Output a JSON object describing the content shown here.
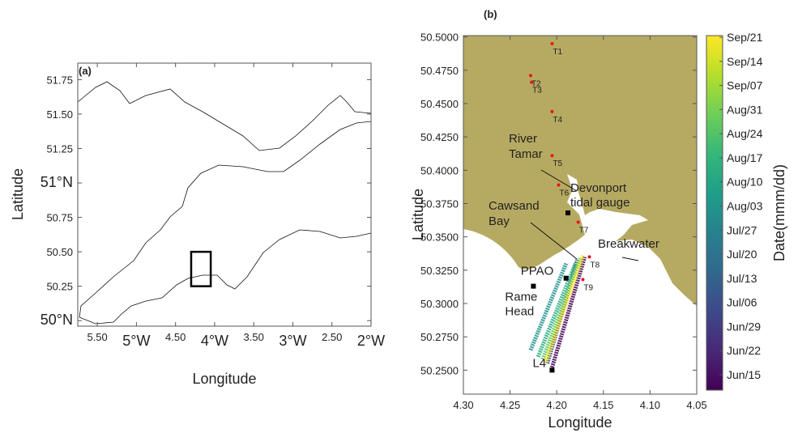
{
  "chart_data": [
    {
      "type": "map",
      "title": "(a)",
      "xlabel": "Longitude",
      "ylabel": "Latitude",
      "xlim": [
        -5.75,
        -2
      ],
      "ylim": [
        49.96,
        51.87
      ],
      "xticks": [
        {
          "value": -5.5,
          "label": "5.50"
        },
        {
          "value": -5,
          "label": "5°W"
        },
        {
          "value": -4.5,
          "label": "4.50"
        },
        {
          "value": -4,
          "label": "4°W"
        },
        {
          "value": -3.5,
          "label": "3.50"
        },
        {
          "value": -3,
          "label": "3°W"
        },
        {
          "value": -2.5,
          "label": "2.50"
        },
        {
          "value": -2,
          "label": "2°W"
        }
      ],
      "yticks": [
        {
          "value": 50,
          "label": "50°N"
        },
        {
          "value": 50.25,
          "label": "50.25"
        },
        {
          "value": 50.5,
          "label": "50.50"
        },
        {
          "value": 50.75,
          "label": "50.75"
        },
        {
          "value": 51,
          "label": "51°N"
        },
        {
          "value": 51.25,
          "label": "51.25"
        },
        {
          "value": 51.5,
          "label": "51.50"
        },
        {
          "value": 51.75,
          "label": "51.75"
        }
      ],
      "box": {
        "x": [
          -4.3,
          -4.05
        ],
        "y": [
          50.25,
          50.5
        ]
      }
    },
    {
      "type": "map",
      "title": "(b)",
      "xlabel": "Longitude",
      "ylabel": "Latitude",
      "xlim": [
        -4.3,
        -4.05
      ],
      "ylim": [
        50.232,
        50.501
      ],
      "xticks": [
        {
          "value": -4.3,
          "label": "4.30"
        },
        {
          "value": -4.25,
          "label": "4.25"
        },
        {
          "value": -4.2,
          "label": "4.20"
        },
        {
          "value": -4.15,
          "label": "4.15"
        },
        {
          "value": -4.1,
          "label": "4.10"
        },
        {
          "value": -4.05,
          "label": "4.05"
        }
      ],
      "yticks": [
        {
          "value": 50.25,
          "label": "50.2500"
        },
        {
          "value": 50.275,
          "label": "50.2750"
        },
        {
          "value": 50.3,
          "label": "50.3000"
        },
        {
          "value": 50.325,
          "label": "50.3250"
        },
        {
          "value": 50.35,
          "label": "50.3500"
        },
        {
          "value": 50.375,
          "label": "50.3750"
        },
        {
          "value": 50.4,
          "label": "50.4000"
        },
        {
          "value": 50.425,
          "label": "50.4250"
        },
        {
          "value": 50.45,
          "label": "50.4500"
        },
        {
          "value": 50.475,
          "label": "50.4750"
        },
        {
          "value": 50.5,
          "label": "50.5000"
        }
      ],
      "stations": {
        "color": "#e8141b",
        "labels": [
          "T1",
          "T2",
          "T3",
          "T4",
          "T5",
          "T6",
          "T7",
          "T8",
          "T9"
        ],
        "x": [
          -4.205,
          -4.228,
          -4.227,
          -4.205,
          -4.205,
          -4.198,
          -4.177,
          -4.165,
          -4.172
        ],
        "y": [
          50.495,
          50.471,
          50.466,
          50.444,
          50.411,
          50.389,
          50.361,
          50.335,
          50.318
        ]
      },
      "landmarks": {
        "labels": [
          "PPAO",
          "Rame Head",
          "L4"
        ],
        "x": [
          -4.19,
          -4.225,
          -4.205
        ],
        "y": [
          50.319,
          50.313,
          50.25
        ]
      },
      "gauge": {
        "label": "Devonport tidal gauge",
        "x": -4.188,
        "y": 50.368
      },
      "annotations": [
        "River Tamar",
        "Cawsand Bay",
        "Breakwater"
      ],
      "track": [
        {
          "color": "#440154",
          "x": [
            -4.205,
            -4.17
          ],
          "y": [
            50.252,
            50.335
          ]
        },
        {
          "color": "#3b528b",
          "x": [
            -4.21,
            -4.178
          ],
          "y": [
            50.255,
            50.333
          ]
        },
        {
          "color": "#21908d",
          "x": [
            -4.228,
            -4.19
          ],
          "y": [
            50.265,
            50.33
          ]
        },
        {
          "color": "#27ad81",
          "x": [
            -4.22,
            -4.18
          ],
          "y": [
            50.26,
            50.33
          ]
        },
        {
          "color": "#5dc962",
          "x": [
            -4.215,
            -4.175
          ],
          "y": [
            50.258,
            50.334
          ]
        },
        {
          "color": "#fde725",
          "x": [
            -4.212,
            -4.172
          ],
          "y": [
            50.256,
            50.336
          ]
        }
      ],
      "colorbar": {
        "label": "Date(mmm/dd)",
        "ticks": [
          "Jun/15",
          "Jun/22",
          "Jun/29",
          "Jul/06",
          "Jul/13",
          "Jul/20",
          "Jul/27",
          "Aug/03",
          "Aug/10",
          "Aug/17",
          "Aug/24",
          "Aug/31",
          "Sep/07",
          "Sep/14",
          "Sep/21"
        ],
        "colors": [
          "#440154",
          "#482878",
          "#3e4989",
          "#31688e",
          "#26828e",
          "#1f9e89",
          "#35b779",
          "#6ece58",
          "#b5de2b",
          "#fde725"
        ]
      }
    }
  ]
}
